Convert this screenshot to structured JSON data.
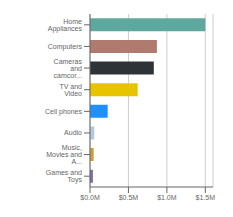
{
  "chart_data": {
    "type": "bar",
    "orientation": "horizontal",
    "categories": [
      "Home Appliances",
      "Computers",
      "Cameras and camcor...",
      "TV and Video",
      "Cell phones",
      "Audio",
      "Music, Movies and A...",
      "Games and Toys"
    ],
    "values": [
      1500000,
      870000,
      830000,
      620000,
      230000,
      55000,
      48000,
      38000
    ],
    "colors": [
      "#5fa8a0",
      "#b07a6e",
      "#2e3338",
      "#e8c400",
      "#1e90ff",
      "#b0c8e0",
      "#c8a040",
      "#7b6fa8"
    ],
    "xlim": [
      0,
      1600000
    ],
    "xticks": [
      {
        "value": 0,
        "label": "$0.0M"
      },
      {
        "value": 500000,
        "label": "$0.5M"
      },
      {
        "value": 1000000,
        "label": "$1.0M"
      },
      {
        "value": 1500000,
        "label": "$1.5M"
      }
    ],
    "grid": true
  }
}
